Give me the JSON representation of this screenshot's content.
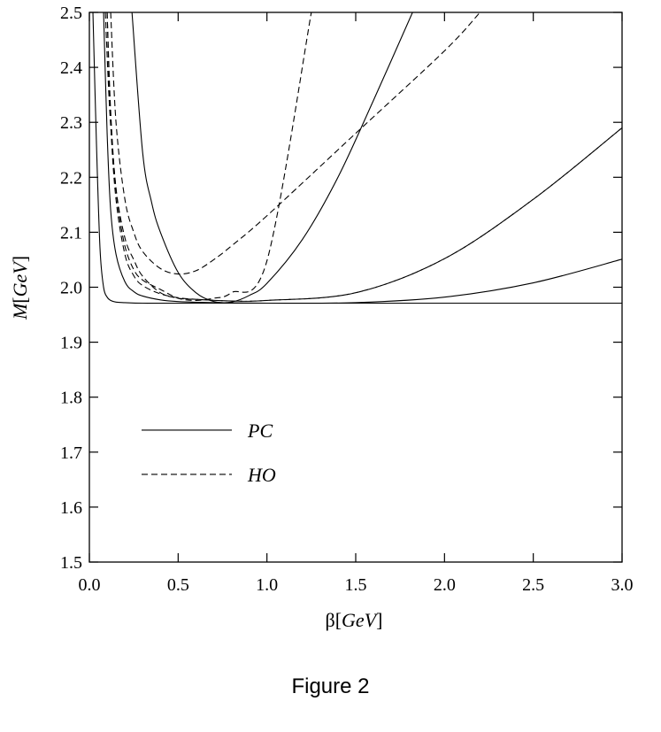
{
  "caption": "Figure 2",
  "chart_data": {
    "type": "line",
    "xlabel_symbol": "β",
    "xlabel_unit": "GeV",
    "ylabel_symbol": "M",
    "ylabel_unit": "GeV",
    "xlim": [
      0.0,
      3.0
    ],
    "ylim": [
      1.5,
      2.5
    ],
    "x_ticks": [
      "0.0",
      "0.5",
      "1.0",
      "1.5",
      "2.0",
      "2.5",
      "3.0"
    ],
    "y_ticks": [
      "1.5",
      "1.6",
      "1.7",
      "1.8",
      "1.9",
      "2.0",
      "2.1",
      "2.2",
      "2.3",
      "2.4",
      "2.5"
    ],
    "grid": false,
    "legend_position": "bottom-left",
    "legend": [
      {
        "label": "PC",
        "style": "solid"
      },
      {
        "label": "HO",
        "style": "dashed"
      }
    ],
    "series": [
      {
        "style": "solid",
        "x": [
          0.02,
          0.04,
          0.06,
          0.08,
          0.1,
          0.12,
          0.15,
          0.2,
          0.3,
          0.5,
          1.0,
          2.0,
          3.0
        ],
        "y": [
          2.5,
          2.26,
          2.07,
          2.0,
          1.982,
          1.976,
          1.973,
          1.972,
          1.971,
          1.971,
          1.971,
          1.971,
          1.971
        ]
      },
      {
        "style": "solid",
        "x": [
          0.08,
          0.1,
          0.12,
          0.15,
          0.2,
          0.25,
          0.3,
          0.4,
          0.5,
          0.7,
          1.0,
          1.5,
          2.0,
          2.5,
          3.0
        ],
        "y": [
          2.5,
          2.28,
          2.14,
          2.06,
          2.01,
          1.992,
          1.984,
          1.977,
          1.974,
          1.972,
          1.971,
          1.972,
          1.982,
          2.008,
          2.051
        ]
      },
      {
        "style": "solid",
        "x": [
          0.24,
          0.3,
          0.35,
          0.4,
          0.5,
          0.6,
          0.7,
          0.8,
          0.9,
          1.0,
          1.2,
          1.4,
          1.6,
          1.82
        ],
        "y": [
          2.5,
          2.245,
          2.155,
          2.1,
          2.027,
          1.99,
          1.974,
          1.973,
          1.985,
          2.007,
          2.087,
          2.2,
          2.34,
          2.5
        ]
      },
      {
        "style": "dashed",
        "x": [
          0.09,
          0.11,
          0.13,
          0.16,
          0.2,
          0.25,
          0.3,
          0.4,
          0.5,
          0.6,
          0.7,
          0.8,
          1.0,
          1.25
        ],
        "y": [
          2.5,
          2.35,
          2.25,
          2.15,
          2.075,
          2.032,
          2.013,
          1.996,
          1.98,
          1.976,
          1.98,
          1.99,
          2.048,
          2.5
        ]
      },
      {
        "style": "dashed",
        "x": [
          0.12,
          0.15,
          0.2,
          0.25,
          0.3,
          0.4,
          0.5,
          0.6,
          0.7,
          0.8,
          1.0,
          1.5,
          2.0,
          2.2
        ],
        "y": [
          2.5,
          2.3,
          2.16,
          2.1,
          2.065,
          2.034,
          2.024,
          2.03,
          2.05,
          2.075,
          2.13,
          2.28,
          2.43,
          2.5
        ]
      },
      {
        "style": "dashed",
        "x": [
          0.1,
          0.12,
          0.15,
          0.2,
          0.25,
          0.3,
          0.4,
          0.5,
          0.6,
          0.8,
          1.0,
          1.5,
          2.0,
          2.5,
          3.0
        ],
        "y": [
          2.5,
          2.3,
          2.16,
          2.06,
          2.021,
          2.003,
          1.988,
          1.981,
          1.978,
          1.975,
          1.976,
          1.99,
          2.052,
          2.16,
          2.29
        ]
      },
      {
        "style": "dashed",
        "x": [
          0.1,
          0.12,
          0.15,
          0.2,
          0.25,
          0.3,
          0.4,
          0.5,
          0.6,
          0.8,
          1.0,
          1.5,
          2.0,
          2.5,
          3.0
        ],
        "y": [
          2.5,
          2.32,
          2.18,
          2.09,
          2.05,
          2.02,
          1.99,
          1.98,
          1.978,
          1.975,
          1.976,
          1.99,
          2.052,
          2.16,
          2.29
        ]
      }
    ]
  }
}
